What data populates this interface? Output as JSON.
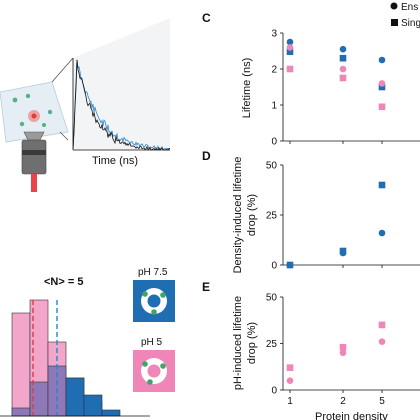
{
  "colors": {
    "blue": "#1f6db3",
    "pink": "#ef86b7",
    "pink_light": "#f2a6ca",
    "purple_overlap": "#8e78b8",
    "axis": "#111111"
  },
  "panel_labels": {
    "c": "C",
    "d": "D",
    "e": "E"
  },
  "decay_panel": {
    "xlabel": "Time (ns)"
  },
  "histogram_panel": {
    "title": "<N> = 5",
    "ph_high_label": "pH 7.5",
    "ph_low_label": "pH 5"
  },
  "legend": {
    "ensemble": "Ens",
    "single": "Sing"
  },
  "chart_data": [
    {
      "id": "C",
      "type": "scatter",
      "ylabel": "Lifetime (ns)",
      "ylim": [
        0,
        3
      ],
      "yticks": [
        "0",
        "1",
        "2",
        "3"
      ],
      "categories": [
        "1",
        "2",
        "5"
      ],
      "series": [
        {
          "marker": "circle",
          "color": "blue",
          "x": [
            "1",
            "2",
            "5"
          ],
          "y": [
            2.75,
            2.55,
            2.25
          ]
        },
        {
          "marker": "square",
          "color": "blue",
          "x": [
            "1",
            "2",
            "5"
          ],
          "y": [
            2.48,
            2.3,
            1.5
          ]
        },
        {
          "marker": "circle",
          "color": "pink",
          "x": [
            "1",
            "2",
            "5"
          ],
          "y": [
            2.6,
            2.0,
            1.6
          ]
        },
        {
          "marker": "square",
          "color": "pink",
          "x": [
            "1",
            "2",
            "5"
          ],
          "y": [
            2.0,
            1.75,
            0.95
          ]
        }
      ]
    },
    {
      "id": "D",
      "type": "scatter",
      "ylabel": "Density-induced lifetime drop (%)",
      "ylim": [
        0,
        50
      ],
      "yticks": [
        "0",
        "25",
        "50"
      ],
      "categories": [
        "1",
        "2",
        "5"
      ],
      "series": [
        {
          "marker": "circle",
          "color": "blue",
          "x": [
            "1",
            "2",
            "5"
          ],
          "y": [
            0,
            6,
            16
          ]
        },
        {
          "marker": "square",
          "color": "blue",
          "x": [
            "1",
            "2",
            "5"
          ],
          "y": [
            0,
            7,
            40
          ]
        }
      ]
    },
    {
      "id": "E",
      "type": "scatter",
      "ylabel": "pH-induced lifetime drop (%)",
      "xlabel": "Protein density",
      "ylim": [
        0,
        50
      ],
      "yticks": [
        "0",
        "25",
        "50"
      ],
      "xticks": [
        "1",
        "2",
        "5"
      ],
      "categories": [
        "1",
        "2",
        "5"
      ],
      "series": [
        {
          "marker": "circle",
          "color": "pink",
          "x": [
            "1",
            "2",
            "5"
          ],
          "y": [
            5,
            20,
            26
          ]
        },
        {
          "marker": "square",
          "color": "pink",
          "x": [
            "1",
            "2",
            "5"
          ],
          "y": [
            12,
            23,
            35
          ]
        }
      ]
    }
  ]
}
